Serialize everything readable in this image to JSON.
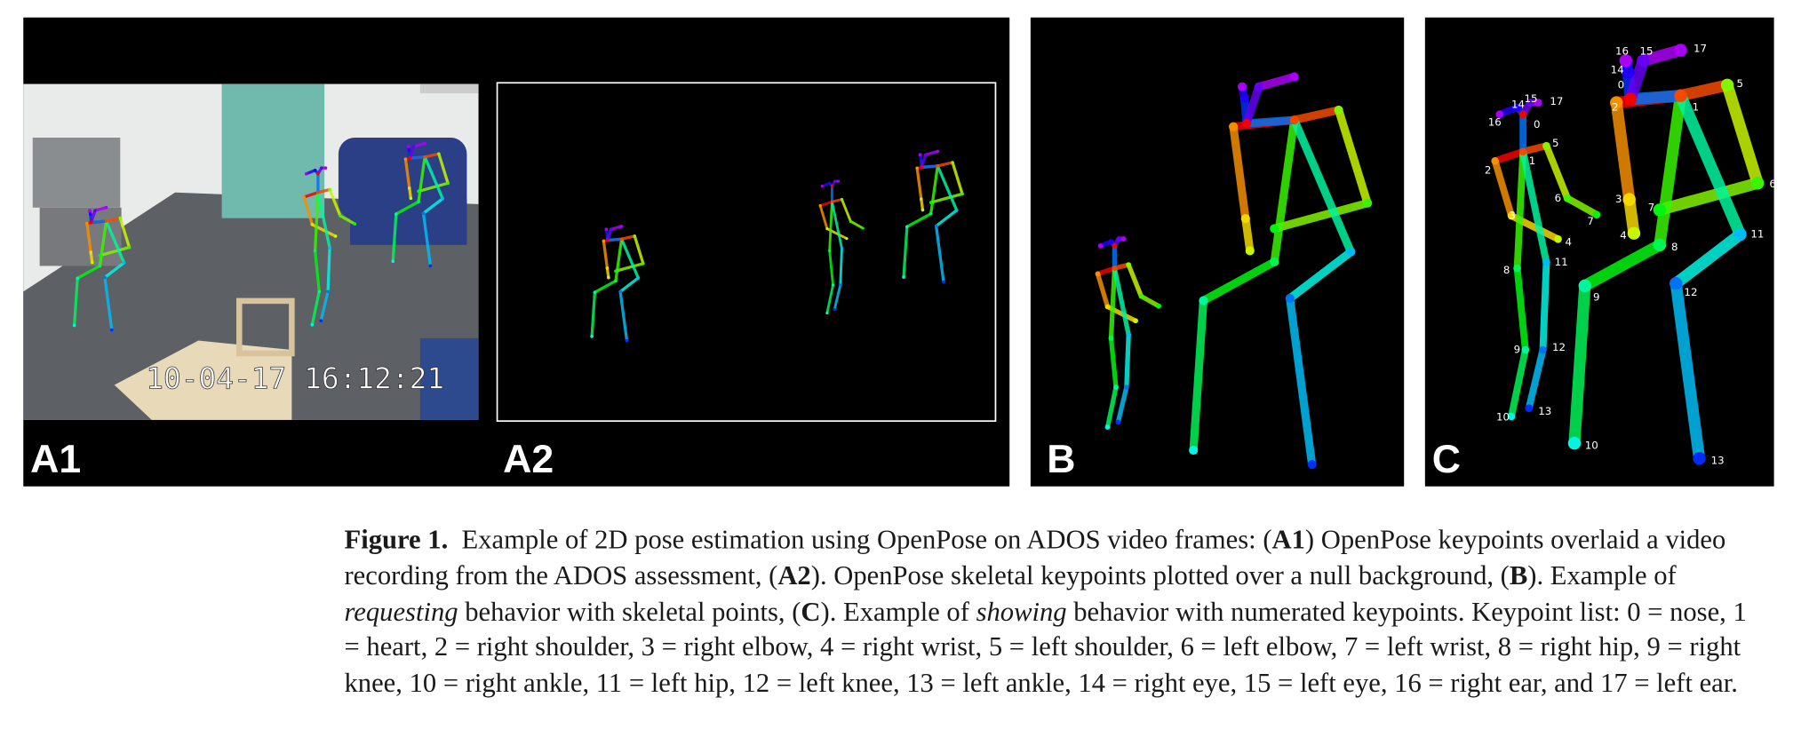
{
  "panels": {
    "a1": {
      "label": "A1",
      "timestamp": "10-04-17 16:12:21"
    },
    "a2": {
      "label": "A2"
    },
    "b": {
      "label": "B"
    },
    "c": {
      "label": "C",
      "people": [
        {
          "labels": [
            "0",
            "1",
            "2",
            "3",
            "4",
            "5",
            "6",
            "7",
            "8",
            "9",
            "10",
            "11",
            "12",
            "13",
            "14",
            "15",
            "16",
            "17"
          ]
        },
        {
          "labels": [
            "0",
            "1",
            "2",
            "3",
            "4",
            "5",
            "6",
            "7",
            "8",
            "9",
            "10",
            "11",
            "12",
            "13",
            "14",
            "15",
            "16",
            "17"
          ]
        }
      ]
    }
  },
  "caption": {
    "parts": [
      "Figure 1.",
      "  Example of 2D pose estimation using OpenPose on ADOS video frames: (",
      "A1",
      ") OpenPose keypoints overlaid a video recording from the ADOS assessment, (",
      "A2",
      "). OpenPose skeletal keypoints plotted over a null background, (",
      "B",
      "). Example of ",
      "requesting",
      " behavior with skeletal points, (",
      "C",
      "). Example of ",
      "showing",
      " behavior with numerated keypoints. Keypoint list: 0 = nose, 1 = heart, 2 = right shoulder, 3 = right elbow, 4 = right wrist, 5 = left shoulder, 6 = left elbow, 7 = left wrist, 8 = right hip, 9 = right knee, 10 = right ankle, 11 = left hip, 12 = left knee, 13 = left ankle, 14 = right eye, 15 = left eye, 16 = right ear, and 17 = left ear."
    ]
  }
}
